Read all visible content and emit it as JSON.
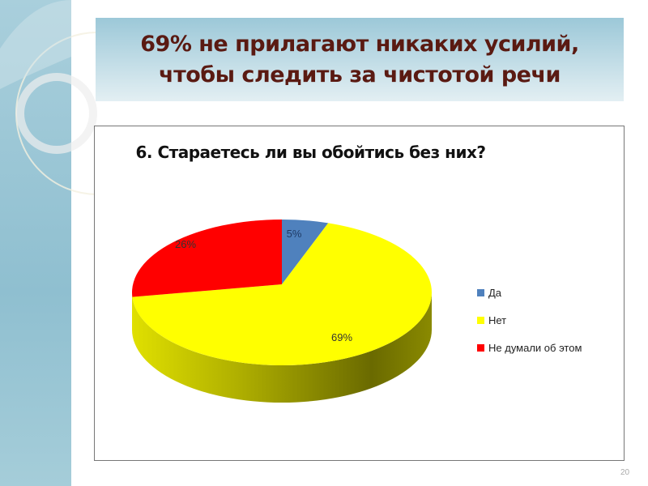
{
  "slide": {
    "title_line1": "69% не прилагают никаких усилий,",
    "title_line2": "чтобы следить за чистотой речи",
    "page_number": "20"
  },
  "chart_data": {
    "type": "pie",
    "style": "3d",
    "title": "6. Стараетесь ли вы обойтись без них?",
    "categories": [
      "Да",
      "Нет",
      "Не думали об этом"
    ],
    "values": [
      5,
      69,
      26
    ],
    "labels": [
      "5%",
      "69%",
      "26%"
    ],
    "colors": [
      "#4f81bd",
      "#ffff00",
      "#ff0000"
    ],
    "legend_position": "right"
  }
}
